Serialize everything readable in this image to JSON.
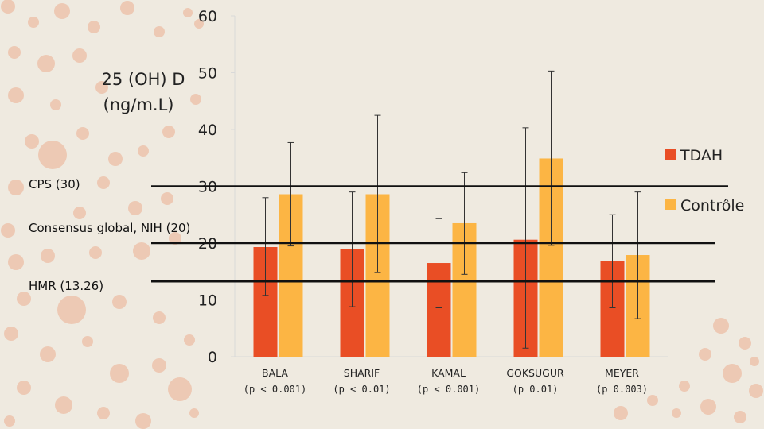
{
  "chart_data": {
    "type": "bar",
    "ylabel_lines": [
      "25 (OH) D",
      "(ng/m.L)"
    ],
    "ylim": [
      0,
      60
    ],
    "yticks": [
      0,
      10,
      20,
      30,
      40,
      50,
      60
    ],
    "categories": [
      {
        "name": "BALA",
        "pvalue": "(p < 0.001)"
      },
      {
        "name": "SHARIF",
        "pvalue": "(p < 0.01)"
      },
      {
        "name": "KAMAL",
        "pvalue": "(p < 0.001)"
      },
      {
        "name": "GOKSUGUR",
        "pvalue": "(p 0.01)"
      },
      {
        "name": "MEYER",
        "pvalue": "(p 0.003)"
      }
    ],
    "series": [
      {
        "name": "TDAH",
        "color": "#e94e25",
        "values": [
          19.3,
          18.9,
          16.5,
          20.6,
          16.8
        ],
        "err_high": [
          28.0,
          29.0,
          24.3,
          40.3,
          25.0
        ],
        "err_low": [
          10.8,
          8.8,
          8.6,
          1.5,
          8.6
        ]
      },
      {
        "name": "Contrôle",
        "color": "#fcb544",
        "values": [
          28.6,
          28.6,
          23.5,
          34.9,
          17.9
        ],
        "err_high": [
          37.7,
          42.5,
          32.4,
          50.3,
          29.0
        ],
        "err_low": [
          19.5,
          14.8,
          14.5,
          19.6,
          6.7
        ]
      }
    ],
    "reference_lines": [
      {
        "label": "CPS (30)",
        "value": 30
      },
      {
        "label": "Consensus global, NIH (20)",
        "value": 20
      },
      {
        "label": "HMR (13.26)",
        "value": 13.26
      }
    ],
    "legend_position": "right"
  }
}
